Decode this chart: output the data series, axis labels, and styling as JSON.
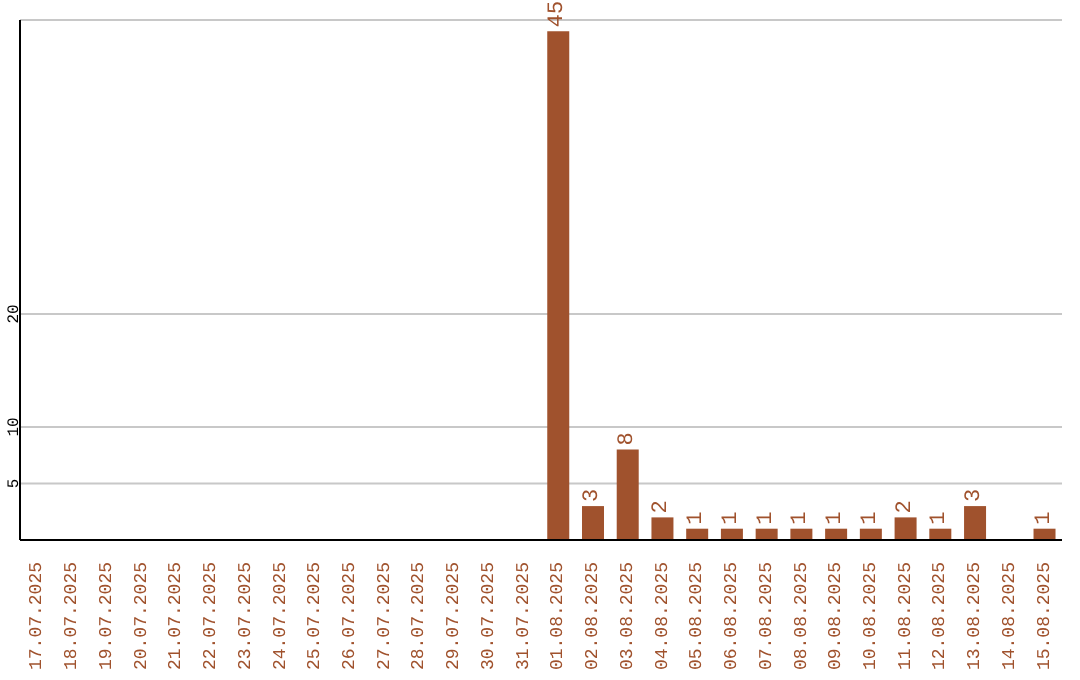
{
  "chart_data": {
    "type": "bar",
    "categories": [
      "17.07.2025",
      "18.07.2025",
      "19.07.2025",
      "20.07.2025",
      "21.07.2025",
      "22.07.2025",
      "23.07.2025",
      "24.07.2025",
      "25.07.2025",
      "26.07.2025",
      "27.07.2025",
      "28.07.2025",
      "29.07.2025",
      "30.07.2025",
      "31.07.2025",
      "01.08.2025",
      "02.08.2025",
      "03.08.2025",
      "04.08.2025",
      "05.08.2025",
      "06.08.2025",
      "07.08.2025",
      "08.08.2025",
      "09.08.2025",
      "10.08.2025",
      "11.08.2025",
      "12.08.2025",
      "13.08.2025",
      "14.08.2025",
      "15.08.2025"
    ],
    "values": [
      0,
      0,
      0,
      0,
      0,
      0,
      0,
      0,
      0,
      0,
      0,
      0,
      0,
      0,
      0,
      45,
      3,
      8,
      2,
      1,
      1,
      1,
      1,
      1,
      1,
      2,
      1,
      3,
      0,
      1
    ],
    "value_labels": [
      null,
      null,
      null,
      null,
      null,
      null,
      null,
      null,
      null,
      null,
      null,
      null,
      null,
      null,
      null,
      "45",
      "3",
      "8",
      "2",
      "1",
      "1",
      "1",
      "1",
      "1",
      "1",
      "2",
      "1",
      "3",
      null,
      "1"
    ],
    "color": "#a0522d",
    "ylim": [
      0,
      46
    ],
    "yticks": [
      5,
      10,
      20
    ],
    "grid": "y"
  }
}
